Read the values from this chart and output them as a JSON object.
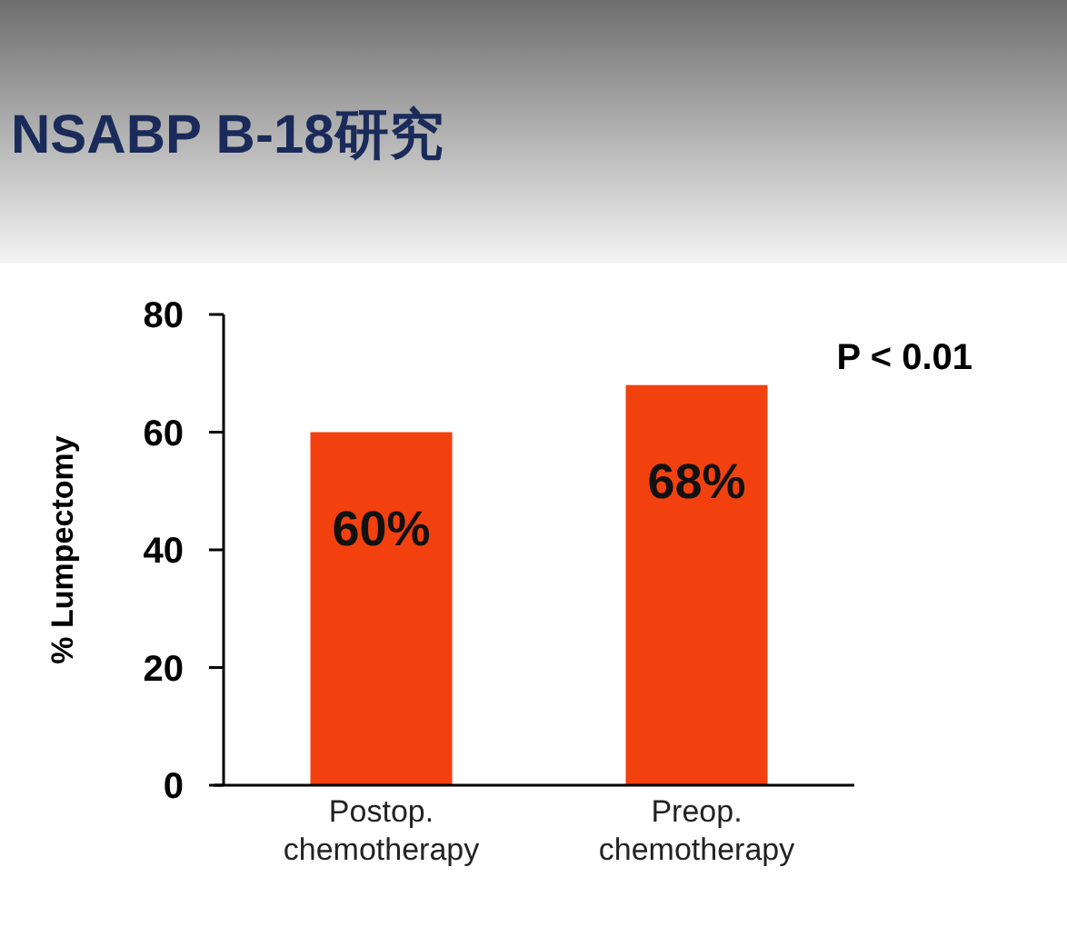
{
  "chart_data": {
    "type": "bar",
    "title": "NSABP B-18研究",
    "ylabel": "% Lumpectomy",
    "categories": [
      "Postop.\nchemotherapy",
      "Preop.\nchemotherapy"
    ],
    "values": [
      60,
      68
    ],
    "color": "#f2410f",
    "value_labels": [
      "60%",
      "68%"
    ],
    "ylim": [
      0,
      80
    ],
    "yticks": [
      0,
      20,
      40,
      60,
      80
    ],
    "annotations": [
      "P < 0.01"
    ]
  }
}
